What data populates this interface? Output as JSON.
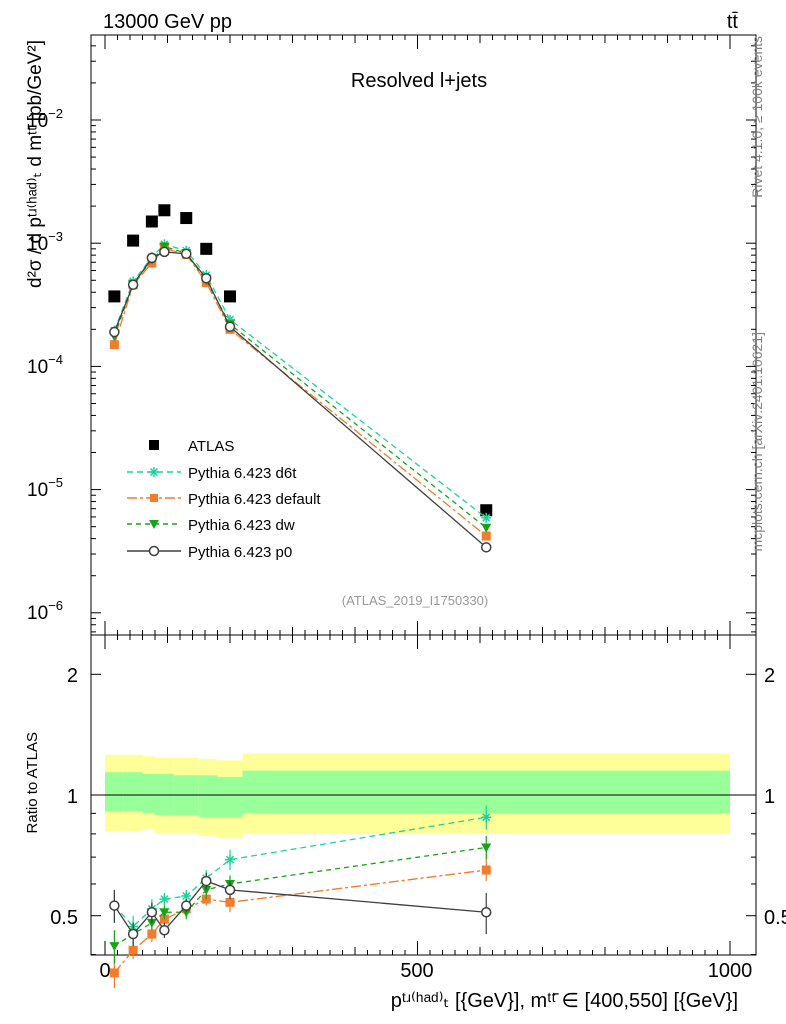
{
  "header": {
    "energy_label": "13000 GeV pp",
    "process_label": "tt̄"
  },
  "side_labels": {
    "rivet": "Rivet 4.1.0, ≥ 100k events",
    "mcplots": "mcplots.cern.ch [arXiv:2401.10621]"
  },
  "main_plot": {
    "title": "Resolved l+jets",
    "ref_label": "(ATLAS_2019_I1750330)",
    "y_axis_label": "d²σ / d pᵗʴ⁽ʰᵃᵈ⁾ₜ d mᵗᵗ̄ [pb/GeV²]",
    "y_ticks": [
      {
        "base": "10",
        "exp": "−2"
      },
      {
        "base": "10",
        "exp": "−3"
      },
      {
        "base": "10",
        "exp": "−4"
      },
      {
        "base": "10",
        "exp": "−5"
      },
      {
        "base": "10",
        "exp": "−6"
      }
    ]
  },
  "ratio_plot": {
    "y_axis_label": "Ratio to ATLAS",
    "y_ticks": [
      "2",
      "1",
      "0.5"
    ]
  },
  "x_axis": {
    "label": "pᵗʴ⁽ʰᵃᵈ⁾ₜ [{GeV}], mᵗᵗ̄ ∈ [400,550] [{GeV}]",
    "ticks": [
      "0",
      "500",
      "1000"
    ]
  },
  "colors": {
    "data": "#000000",
    "d6t": "#1dd39a",
    "default": "#f47a2c",
    "dw": "#17a317",
    "p0": "#3f3f3f",
    "band_inner": "#99ff99",
    "band_outer": "#ffff99"
  },
  "chart_data": {
    "type": "line",
    "x_axis_range": [
      -20,
      1000
    ],
    "main_ylim": [
      5e-07,
      0.05
    ],
    "main_yscale": "log",
    "ratio_ylim": [
      0.33,
      2.35
    ],
    "ratio_yscale": "log",
    "x": [
      15,
      45,
      75,
      95,
      130,
      162,
      200,
      610
    ],
    "series": [
      {
        "name": "ATLAS",
        "key": "data",
        "marker": "square",
        "values": [
          0.00037,
          0.00105,
          0.0015,
          0.00185,
          0.0016,
          0.0009,
          0.00037,
          6.8e-06
        ]
      },
      {
        "name": "Pythia 6.423 d6t",
        "key": "d6t",
        "marker": "star",
        "dash": "6,4",
        "values": [
          0.000195,
          0.00049,
          0.00077,
          0.00098,
          0.00087,
          0.00055,
          0.00024,
          5.9e-06
        ],
        "ratio": [
          0.53,
          0.47,
          0.52,
          0.55,
          0.56,
          0.62,
          0.69,
          0.88
        ],
        "ratio_err": [
          0.05,
          0.03,
          0.03,
          0.02,
          0.02,
          0.03,
          0.04,
          0.06
        ]
      },
      {
        "name": "Pythia 6.423 default",
        "key": "default",
        "marker": "fsquare",
        "dash": "10,3,3,3",
        "values": [
          0.00015,
          0.00046,
          0.00069,
          0.00091,
          0.00081,
          0.00048,
          0.0002,
          4.2e-06
        ],
        "ratio": [
          0.36,
          0.41,
          0.45,
          0.49,
          0.52,
          0.55,
          0.54,
          0.65
        ],
        "ratio_err": [
          0.03,
          0.02,
          0.02,
          0.02,
          0.02,
          0.02,
          0.03,
          0.04
        ]
      },
      {
        "name": "Pythia 6.423 dw",
        "key": "dw",
        "marker": "triangle",
        "dash": "5,4",
        "values": [
          0.000175,
          0.00047,
          0.00073,
          0.00094,
          0.00083,
          0.0005,
          0.00022,
          4.9e-06
        ],
        "ratio": [
          0.42,
          0.45,
          0.48,
          0.51,
          0.51,
          0.58,
          0.6,
          0.74
        ],
        "ratio_err": [
          0.04,
          0.03,
          0.02,
          0.02,
          0.02,
          0.03,
          0.03,
          0.05
        ]
      },
      {
        "name": "Pythia 6.423 p0",
        "key": "p0",
        "marker": "circle",
        "dash": "",
        "values": [
          0.00019,
          0.00046,
          0.00076,
          0.00085,
          0.00082,
          0.00052,
          0.00021,
          3.4e-06
        ],
        "ratio": [
          0.53,
          0.45,
          0.51,
          0.46,
          0.53,
          0.61,
          0.58,
          0.51
        ],
        "ratio_err": [
          0.05,
          0.03,
          0.03,
          0.02,
          0.02,
          0.03,
          0.03,
          0.06
        ]
      }
    ],
    "uncertainty_band": {
      "edges": [
        0,
        30,
        60,
        80,
        110,
        150,
        180,
        220,
        1000
      ],
      "inner": [
        [
          0.91,
          1.14
        ],
        [
          0.91,
          1.14
        ],
        [
          0.9,
          1.13
        ],
        [
          0.89,
          1.13
        ],
        [
          0.89,
          1.12
        ],
        [
          0.88,
          1.12
        ],
        [
          0.88,
          1.11
        ],
        [
          0.9,
          1.15
        ]
      ],
      "outer": [
        [
          0.81,
          1.26
        ],
        [
          0.81,
          1.26
        ],
        [
          0.82,
          1.25
        ],
        [
          0.8,
          1.24
        ],
        [
          0.8,
          1.24
        ],
        [
          0.79,
          1.23
        ],
        [
          0.78,
          1.22
        ],
        [
          0.8,
          1.27
        ]
      ]
    }
  }
}
